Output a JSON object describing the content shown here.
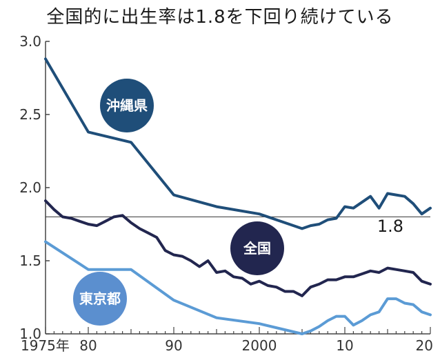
{
  "title": "全国的に出生率は1.8を下回り続けている",
  "chart_data": {
    "type": "line",
    "title": "全国的に出生率は1.8を下回り続けている",
    "xlabel": "",
    "ylabel": "",
    "xlim": [
      1975,
      2020
    ],
    "ylim": [
      1.0,
      3.0
    ],
    "y_ticks": [
      1.0,
      1.5,
      2.0,
      2.5,
      3.0
    ],
    "y_tick_labels": [
      "1.0",
      "1.5",
      "2.0",
      "2.5",
      "3.0"
    ],
    "x_ticks": [
      1975,
      1980,
      1990,
      2000,
      2010,
      2020
    ],
    "x_tick_labels": [
      "1975年",
      "80",
      "90",
      "2000",
      "10",
      "20"
    ],
    "reference_line": {
      "value": 1.8,
      "label": "1.8"
    },
    "grid": false,
    "series": [
      {
        "name": "沖縄県",
        "color": "#1f4e79",
        "label_color": "#1f4e79",
        "x": [
          1975,
          1980,
          1985,
          1990,
          1995,
          2000,
          2005,
          2006,
          2007,
          2008,
          2009,
          2010,
          2011,
          2012,
          2013,
          2014,
          2015,
          2016,
          2017,
          2018,
          2019,
          2020
        ],
        "values": [
          2.88,
          2.38,
          2.31,
          1.95,
          1.87,
          1.82,
          1.72,
          1.74,
          1.75,
          1.78,
          1.79,
          1.87,
          1.86,
          1.9,
          1.94,
          1.86,
          1.96,
          1.95,
          1.94,
          1.89,
          1.82,
          1.86
        ]
      },
      {
        "name": "全国",
        "color": "#22264f",
        "label_color": "#22264f",
        "x": [
          1975,
          1976,
          1977,
          1978,
          1979,
          1980,
          1981,
          1982,
          1983,
          1984,
          1985,
          1986,
          1987,
          1988,
          1989,
          1990,
          1991,
          1992,
          1993,
          1994,
          1995,
          1996,
          1997,
          1998,
          1999,
          2000,
          2001,
          2002,
          2003,
          2004,
          2005,
          2006,
          2007,
          2008,
          2009,
          2010,
          2011,
          2012,
          2013,
          2014,
          2015,
          2016,
          2017,
          2018,
          2019,
          2020
        ],
        "values": [
          1.91,
          1.85,
          1.8,
          1.79,
          1.77,
          1.75,
          1.74,
          1.77,
          1.8,
          1.81,
          1.76,
          1.72,
          1.69,
          1.66,
          1.57,
          1.54,
          1.53,
          1.5,
          1.46,
          1.5,
          1.42,
          1.43,
          1.39,
          1.38,
          1.34,
          1.36,
          1.33,
          1.32,
          1.29,
          1.29,
          1.26,
          1.32,
          1.34,
          1.37,
          1.37,
          1.39,
          1.39,
          1.41,
          1.43,
          1.42,
          1.45,
          1.44,
          1.43,
          1.42,
          1.36,
          1.34
        ]
      },
      {
        "name": "東京都",
        "color": "#5b9bd5",
        "label_color": "#5b8fcf",
        "x": [
          1975,
          1980,
          1985,
          1990,
          1995,
          2000,
          2005,
          2006,
          2007,
          2008,
          2009,
          2010,
          2011,
          2012,
          2013,
          2014,
          2015,
          2016,
          2017,
          2018,
          2019,
          2020
        ],
        "values": [
          1.63,
          1.44,
          1.44,
          1.23,
          1.11,
          1.07,
          1.0,
          1.02,
          1.05,
          1.09,
          1.12,
          1.12,
          1.06,
          1.09,
          1.13,
          1.15,
          1.24,
          1.24,
          1.21,
          1.2,
          1.15,
          1.13
        ]
      }
    ]
  }
}
